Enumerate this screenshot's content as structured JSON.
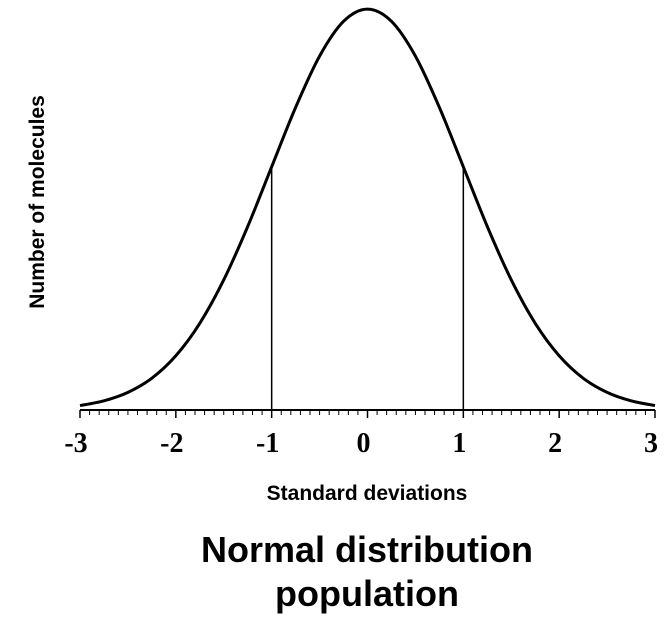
{
  "chart_data": {
    "type": "line",
    "title": "Normal distribution population",
    "x_label": "Standard deviations",
    "y_label": "Number of molecules",
    "x": [
      -3,
      -2.75,
      -2.5,
      -2.25,
      -2,
      -1.75,
      -1.5,
      -1.25,
      -1,
      -0.75,
      -0.5,
      -0.25,
      0,
      0.25,
      0.5,
      0.75,
      1,
      1.25,
      1.5,
      1.75,
      2,
      2.25,
      2.5,
      2.75,
      3
    ],
    "series": [
      {
        "color": "#000000",
        "values": [
          0.0044,
          0.0091,
          0.0175,
          0.0317,
          0.054,
          0.0863,
          0.1295,
          0.1826,
          0.242,
          0.3011,
          0.3521,
          0.3867,
          0.3989,
          0.3867,
          0.3521,
          0.3011,
          0.242,
          0.1826,
          0.1295,
          0.0863,
          0.054,
          0.0317,
          0.0175,
          0.0091,
          0.0044
        ]
      }
    ],
    "xlim": [
      -3,
      3
    ],
    "ylim": [
      0,
      0.4
    ],
    "xticks": [
      -3,
      -2,
      -1,
      0,
      1,
      2,
      3
    ],
    "reference_lines": [
      -1,
      1
    ]
  }
}
